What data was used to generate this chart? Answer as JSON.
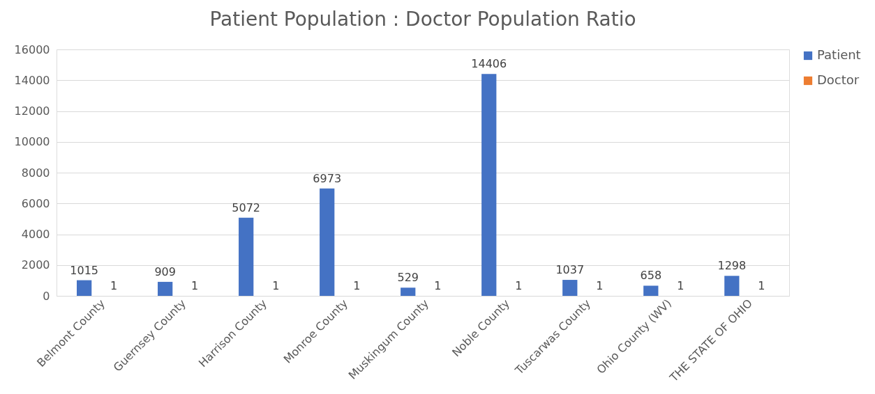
{
  "chart_data": {
    "type": "bar",
    "title": "Patient Population : Doctor Population Ratio",
    "categories": [
      "Belmont County",
      "Guernsey County",
      "Harrison County",
      "Monroe County",
      "Muskingum County",
      "Noble County",
      "Tuscarwas County",
      "Ohio County (WV)",
      "THE STATE OF OHIO"
    ],
    "series": [
      {
        "name": "Patient",
        "color": "#4472c4",
        "values": [
          1015,
          909,
          5072,
          6973,
          529,
          14406,
          1037,
          658,
          1298
        ]
      },
      {
        "name": "Doctor",
        "color": "#ed7d31",
        "values": [
          1,
          1,
          1,
          1,
          1,
          1,
          1,
          1,
          1
        ]
      }
    ],
    "ylim": [
      0,
      16000
    ],
    "yticks": [
      0,
      2000,
      4000,
      6000,
      8000,
      10000,
      12000,
      14000,
      16000
    ],
    "grid": "y",
    "legend": "right",
    "data_labels": true
  }
}
